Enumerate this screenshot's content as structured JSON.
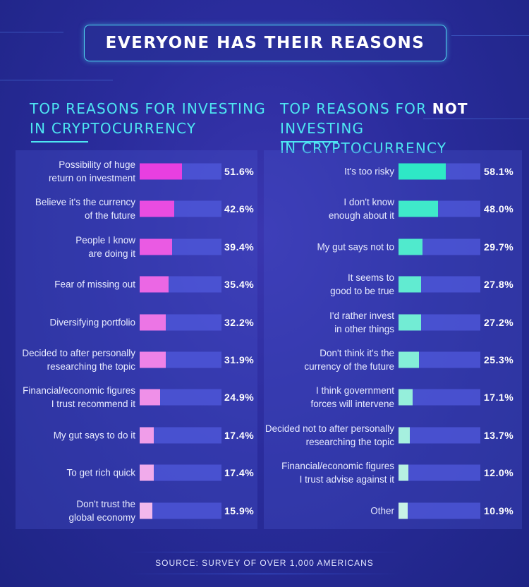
{
  "title": "EVERYONE HAS THEIR REASONS",
  "source": "SOURCE: SURVEY OF OVER 1,000 AMERICANS",
  "chart_data": [
    {
      "type": "bar",
      "orientation": "horizontal",
      "title_parts": [
        "TOP REASONS FOR INVESTING",
        "IN CRYPTOCURRENCY"
      ],
      "xlim": [
        0,
        100
      ],
      "unit": "%",
      "colors": [
        "#e83fe0",
        "#f2b8ec"
      ],
      "categories": [
        "Possibility of huge return on investment",
        "Believe it's the currency of the future",
        "People I know are doing it",
        "Fear of missing out",
        "Diversifying portfolio",
        "Decided to after personally researching the topic",
        "Financial/economic figures I trust recommend it",
        "My gut says to do it",
        "To get rich quick",
        "Don't trust the global economy"
      ],
      "values": [
        51.6,
        42.6,
        39.4,
        35.4,
        32.2,
        31.9,
        24.9,
        17.4,
        17.4,
        15.9
      ],
      "labels": [
        "51.6%",
        "42.6%",
        "39.4%",
        "35.4%",
        "32.2%",
        "31.9%",
        "24.9%",
        "17.4%",
        "17.4%",
        "15.9%"
      ]
    },
    {
      "type": "bar",
      "orientation": "horizontal",
      "title_parts": [
        "TOP REASONS FOR ",
        "NOT",
        " INVESTING",
        "IN CRYPTOCURRENCY"
      ],
      "xlim": [
        0,
        100
      ],
      "unit": "%",
      "colors": [
        "#2ee8c6",
        "#c8f2e6"
      ],
      "categories": [
        "It's too risky",
        "I don't know enough about it",
        "My gut says not to",
        "It seems to good to be true",
        "I'd rather invest in other things",
        "Don't think it's the currency of the future",
        "I think government forces will intervene",
        "Decided not to after personally researching the topic",
        "Financial/economic figures I trust advise against it",
        "Other"
      ],
      "values": [
        58.1,
        48.0,
        29.7,
        27.8,
        27.2,
        25.3,
        17.1,
        13.7,
        12.0,
        10.9
      ],
      "labels": [
        "58.1%",
        "48.0%",
        "29.7%",
        "27.8%",
        "27.2%",
        "25.3%",
        "17.1%",
        "13.7%",
        "12.0%",
        "10.9%"
      ]
    }
  ],
  "label_lines": [
    [
      [
        "Possibility of huge",
        "return on investment"
      ],
      [
        "Believe it's the currency",
        "of the future"
      ],
      [
        "People I know",
        "are doing it"
      ],
      [
        "Fear of missing out"
      ],
      [
        "Diversifying portfolio"
      ],
      [
        "Decided to after personally",
        "researching the topic"
      ],
      [
        "Financial/economic figures",
        "I trust recommend it"
      ],
      [
        "My gut says to do it"
      ],
      [
        "To get rich quick"
      ],
      [
        "Don't trust the",
        "global economy"
      ]
    ],
    [
      [
        "It's too risky"
      ],
      [
        "I don't know",
        "enough about it"
      ],
      [
        "My gut says not to"
      ],
      [
        "It seems to",
        "good to be true"
      ],
      [
        "I'd rather invest",
        "in other things"
      ],
      [
        "Don't think it's the",
        "currency of the future"
      ],
      [
        "I think government",
        "forces will intervene"
      ],
      [
        "Decided not to after personally",
        "researching the topic"
      ],
      [
        "Financial/economic figures",
        "I trust advise against it"
      ],
      [
        "Other"
      ]
    ]
  ]
}
